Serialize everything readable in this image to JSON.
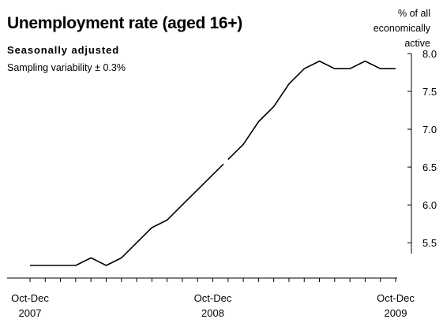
{
  "chart_data": {
    "type": "line",
    "title": "Unemployment rate (aged 16+)",
    "subtitle": "Seasonally adjusted",
    "note": "Sampling variability ± 0.3%",
    "ylabel": [
      "% of all",
      "economically",
      "active"
    ],
    "ylim": [
      5.2,
      8.0
    ],
    "yticks": [
      "8.0",
      "7.5",
      "7.0",
      "6.5",
      "6.0",
      "5.5"
    ],
    "ytick_values": [
      8.0,
      7.5,
      7.0,
      6.5,
      6.0,
      5.5
    ],
    "x_labels": [
      {
        "index": 0,
        "line1": "Oct-Dec",
        "line2": "2007"
      },
      {
        "index": 12,
        "line1": "Oct-Dec",
        "line2": "2008"
      },
      {
        "index": 24,
        "line1": "Oct-Dec",
        "line2": "2009"
      }
    ],
    "x_count": 25,
    "grid": false,
    "series": [
      {
        "values": [
          5.2,
          5.2,
          5.2,
          5.2,
          5.3,
          5.2,
          5.3,
          5.5,
          5.7,
          5.8,
          6.0,
          6.2,
          6.4,
          6.6,
          6.8,
          7.1,
          7.3,
          7.6,
          7.8,
          7.9,
          7.8,
          7.8,
          7.9,
          7.8,
          7.8
        ],
        "break_after_index": 13,
        "color": "#000000"
      }
    ]
  }
}
